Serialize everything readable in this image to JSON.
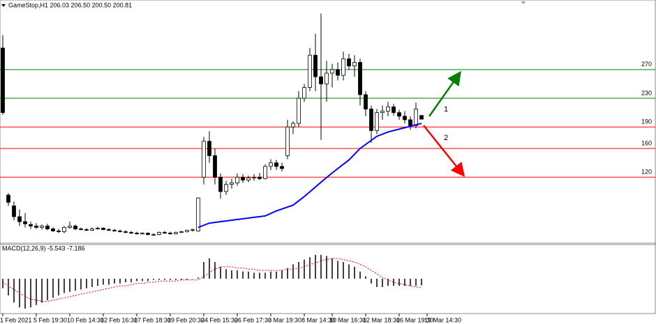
{
  "chart_data": {
    "type": "candlestick",
    "title": "GameStop,H1  206.03 206.50 200.50 200.81",
    "xlim": [
      -0.5,
      117
    ],
    "ylim": [
      29,
      365
    ],
    "xticks": [
      {
        "value": 0,
        "label": "1 Feb 2021"
      },
      {
        "value": 6,
        "label": "5 Feb 19:30"
      },
      {
        "value": 12,
        "label": "10 Feb 14:30"
      },
      {
        "value": 18,
        "label": "12 Feb 16:30"
      },
      {
        "value": 24,
        "label": "17 Feb 18:30"
      },
      {
        "value": 30,
        "label": "19 Feb 20:30"
      },
      {
        "value": 36,
        "label": "24 Feb 15:30"
      },
      {
        "value": 42,
        "label": "26 Feb 17:30"
      },
      {
        "value": 48,
        "label": "3 Mar 19:30"
      },
      {
        "value": 54,
        "label": "8 Mar 14:30"
      },
      {
        "value": 59,
        "label": "10 Mar 16:30"
      },
      {
        "value": 65,
        "label": "12 Mar 18:30"
      },
      {
        "value": 71,
        "label": "16 Mar 19:30"
      },
      {
        "value": 76,
        "label": "19 Mar 14:30"
      }
    ],
    "candles": [
      [
        300,
        318,
        207,
        210
      ],
      [
        95,
        98,
        80,
        85
      ],
      [
        80,
        86,
        60,
        65
      ],
      [
        65,
        75,
        52,
        58
      ],
      [
        58,
        70,
        50,
        55
      ],
      [
        54,
        58,
        48,
        52
      ],
      [
        52,
        56,
        48,
        50
      ],
      [
        50,
        54,
        47,
        52
      ],
      [
        52,
        55,
        46,
        48
      ],
      [
        48,
        50,
        44,
        45
      ],
      [
        45,
        48,
        42,
        44
      ],
      [
        44,
        52,
        42,
        50
      ],
      [
        50,
        58,
        48,
        52
      ],
      [
        52,
        54,
        46,
        48
      ],
      [
        48,
        50,
        46,
        47
      ],
      [
        47,
        49,
        45,
        46
      ],
      [
        46,
        50,
        45,
        48
      ],
      [
        48,
        51,
        47,
        49
      ],
      [
        49,
        50,
        46,
        47
      ],
      [
        47,
        49,
        45,
        46
      ],
      [
        46,
        48,
        44,
        45
      ],
      [
        45,
        47,
        43,
        44
      ],
      [
        44,
        46,
        42,
        43
      ],
      [
        43,
        45,
        41,
        42
      ],
      [
        42,
        44,
        40,
        41
      ],
      [
        41,
        43,
        40,
        42
      ],
      [
        42,
        43,
        39,
        40
      ],
      [
        40,
        42,
        38,
        40
      ],
      [
        40,
        44,
        39,
        43
      ],
      [
        43,
        45,
        41,
        42
      ],
      [
        42,
        44,
        40,
        41
      ],
      [
        41,
        44,
        40,
        43
      ],
      [
        43,
        45,
        42,
        44
      ],
      [
        44,
        47,
        43,
        46
      ],
      [
        46,
        48,
        44,
        47
      ],
      [
        45,
        92,
        44,
        91
      ],
      [
        120,
        176,
        110,
        170
      ],
      [
        170,
        184,
        140,
        150
      ],
      [
        150,
        160,
        110,
        120
      ],
      [
        120,
        125,
        90,
        100
      ],
      [
        100,
        115,
        95,
        110
      ],
      [
        110,
        118,
        104,
        112
      ],
      [
        112,
        125,
        108,
        120
      ],
      [
        120,
        124,
        112,
        116
      ],
      [
        116,
        122,
        113,
        119
      ],
      [
        119,
        124,
        115,
        120
      ],
      [
        120,
        126,
        116,
        118
      ],
      [
        118,
        138,
        117,
        135
      ],
      [
        135,
        145,
        130,
        140
      ],
      [
        140,
        144,
        130,
        135
      ],
      [
        135,
        140,
        128,
        132
      ],
      [
        150,
        200,
        145,
        190
      ],
      [
        190,
        198,
        180,
        195
      ],
      [
        195,
        240,
        190,
        230
      ],
      [
        230,
        250,
        225,
        245
      ],
      [
        245,
        300,
        240,
        290
      ],
      [
        290,
        320,
        240,
        260
      ],
      [
        260,
        348,
        172,
        250
      ],
      [
        250,
        282,
        225,
        265
      ],
      [
        265,
        278,
        245,
        270
      ],
      [
        270,
        280,
        255,
        262
      ],
      [
        262,
        295,
        255,
        285
      ],
      [
        285,
        292,
        270,
        275
      ],
      [
        275,
        290,
        260,
        280
      ],
      [
        280,
        285,
        220,
        235
      ],
      [
        235,
        240,
        205,
        215
      ],
      [
        215,
        220,
        168,
        185
      ],
      [
        185,
        215,
        180,
        210
      ],
      [
        210,
        220,
        200,
        212
      ],
      [
        212,
        225,
        205,
        218
      ],
      [
        218,
        222,
        206,
        210
      ],
      [
        210,
        214,
        200,
        205
      ],
      [
        205,
        212,
        195,
        200
      ],
      [
        200,
        205,
        186,
        192
      ],
      [
        192,
        224,
        188,
        215
      ],
      [
        206.03,
        206.5,
        200.5,
        200.81
      ]
    ],
    "ma": {
      "color": "#0000ff",
      "x": [
        35,
        37,
        42,
        47,
        49,
        52,
        54,
        57,
        59,
        62,
        64,
        67,
        69,
        72,
        75
      ],
      "values": [
        50,
        56,
        61,
        66,
        73,
        81,
        93,
        113,
        126,
        144,
        160,
        177,
        183,
        189,
        195
      ]
    },
    "levels": [
      {
        "value": 270,
        "color": "#008000"
      },
      {
        "value": 230,
        "color": "#008000"
      },
      {
        "value": 190,
        "color": "#ff0000"
      },
      {
        "value": 160,
        "color": "#ff0000"
      },
      {
        "value": 120,
        "color": "#ff0000"
      }
    ],
    "annotations": [
      {
        "text": "1",
        "color": "#008000"
      },
      {
        "text": "2",
        "color": "#ff0000"
      }
    ],
    "macd": {
      "label": "MACD(12,26,9) -5.543 -7.186",
      "ylim": [
        -28,
        28
      ],
      "color": "#000000",
      "signal_color": "#ff0000",
      "histogram": [
        -8,
        -14,
        -20,
        -24,
        -25,
        -24,
        -22,
        -20,
        -18,
        -16,
        -14,
        -12,
        -11,
        -10,
        -9,
        -8,
        -7,
        -6,
        -5,
        -5,
        -4,
        -4,
        -3,
        -3,
        -2,
        -2,
        -2,
        -1,
        -1,
        -1,
        -1,
        -1,
        -1,
        -1,
        0,
        1,
        14,
        17,
        14,
        10,
        8,
        7,
        7,
        6,
        6,
        5,
        5,
        5,
        6,
        6,
        7,
        9,
        12,
        14,
        16,
        18,
        20,
        20,
        19,
        17,
        15,
        14,
        12,
        10,
        6,
        2,
        -4,
        -7,
        -7,
        -6,
        -6,
        -6,
        -6,
        -6,
        -6,
        -5.543
      ],
      "signal": [
        -3,
        -6,
        -9,
        -12,
        -15,
        -17,
        -18,
        -19,
        -19,
        -18,
        -17,
        -16,
        -15,
        -14,
        -13,
        -12,
        -11,
        -10,
        -9,
        -8,
        -7,
        -6,
        -6,
        -5,
        -4,
        -4,
        -3,
        -3,
        -2,
        -2,
        -2,
        -2,
        -1,
        -1,
        -1,
        -1,
        2,
        5,
        8,
        10,
        10,
        10,
        9,
        9,
        8,
        8,
        7,
        7,
        7,
        7,
        7,
        8,
        8,
        9,
        10,
        12,
        13,
        15,
        16,
        17,
        17,
        16,
        15,
        14,
        12,
        10,
        7,
        4,
        1,
        -1,
        -3,
        -4,
        -5,
        -6,
        -7,
        -7.186
      ]
    }
  }
}
